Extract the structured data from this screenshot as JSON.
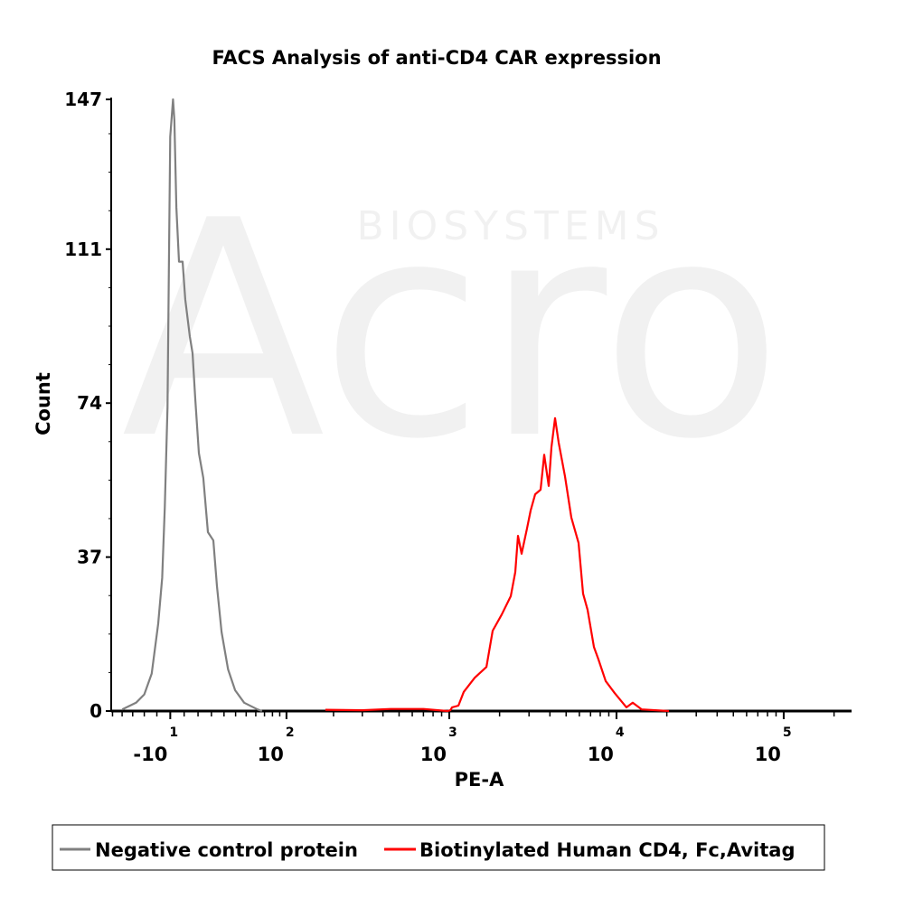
{
  "chart_data": {
    "type": "line",
    "title": "FACS Analysis of anti-CD4 CAR expression",
    "xlabel": "PE-A",
    "ylabel": "Count",
    "x_scale": "biexponential",
    "xlim": [
      -70,
      250000
    ],
    "ylim": [
      0,
      147
    ],
    "x_ticks": [
      {
        "value": -10,
        "base": "-10",
        "exp": "1"
      },
      {
        "value": 100,
        "base": "10",
        "exp": "2"
      },
      {
        "value": 1000,
        "base": "10",
        "exp": "3"
      },
      {
        "value": 10000,
        "base": "10",
        "exp": "4"
      },
      {
        "value": 100000,
        "base": "10",
        "exp": "5"
      }
    ],
    "y_ticks": [
      "0",
      "37",
      "74",
      "111",
      "147"
    ],
    "legend_position": "bottom",
    "series": [
      {
        "name": "Negative control protein",
        "color": "#808080",
        "points": [
          [
            -50,
            0.4
          ],
          [
            -37,
            2
          ],
          [
            -30,
            4
          ],
          [
            -24,
            9
          ],
          [
            -19,
            21
          ],
          [
            -16,
            32
          ],
          [
            -14,
            49
          ],
          [
            -12,
            73
          ],
          [
            -11,
            106
          ],
          [
            -10,
            138
          ],
          [
            -8,
            147
          ],
          [
            -7,
            142
          ],
          [
            -5.6,
            121
          ],
          [
            -3.7,
            108
          ],
          [
            -1.1,
            108
          ],
          [
            0.8,
            99
          ],
          [
            4.1,
            90
          ],
          [
            6,
            86
          ],
          [
            8,
            75
          ],
          [
            10.6,
            62
          ],
          [
            13.9,
            56
          ],
          [
            17.3,
            43
          ],
          [
            21.5,
            41
          ],
          [
            24.3,
            30
          ],
          [
            28,
            19
          ],
          [
            33.4,
            10
          ],
          [
            39.6,
            5
          ],
          [
            48,
            2
          ],
          [
            62,
            0.4
          ],
          [
            67,
            0
          ]
        ]
      },
      {
        "name": "Biotinylated Human CD4, Fc,Avitag",
        "color": "#ff0000",
        "points": [
          [
            178,
            0.3
          ],
          [
            300,
            0.2
          ],
          [
            445,
            0.5
          ],
          [
            700,
            0.5
          ],
          [
            977,
            0
          ],
          [
            1015,
            0.2
          ],
          [
            1039,
            0.9
          ],
          [
            1134,
            1.3
          ],
          [
            1221,
            4.6
          ],
          [
            1419,
            8
          ],
          [
            1668,
            10.6
          ],
          [
            1818,
            19.3
          ],
          [
            2060,
            23.2
          ],
          [
            2333,
            27.6
          ],
          [
            2482,
            33.4
          ],
          [
            2576,
            42.1
          ],
          [
            2708,
            37.8
          ],
          [
            2919,
            43.9
          ],
          [
            3068,
            48.2
          ],
          [
            3265,
            52.1
          ],
          [
            3519,
            53.2
          ],
          [
            3698,
            61.6
          ],
          [
            3935,
            54.1
          ],
          [
            4084,
            63.4
          ],
          [
            4295,
            70.4
          ],
          [
            4512,
            64.5
          ],
          [
            4922,
            56.4
          ],
          [
            5372,
            46.5
          ],
          [
            5931,
            40.4
          ],
          [
            6313,
            28.2
          ],
          [
            6718,
            24.3
          ],
          [
            7329,
            15.4
          ],
          [
            7800,
            12.4
          ],
          [
            8617,
            7.2
          ],
          [
            9760,
            4.3
          ],
          [
            11474,
            0.9
          ],
          [
            12514,
            2
          ],
          [
            14170,
            0.4
          ],
          [
            20600,
            0
          ]
        ]
      }
    ]
  },
  "watermark": {
    "brand": "Acro",
    "sub": "BIOSYSTEMS"
  }
}
